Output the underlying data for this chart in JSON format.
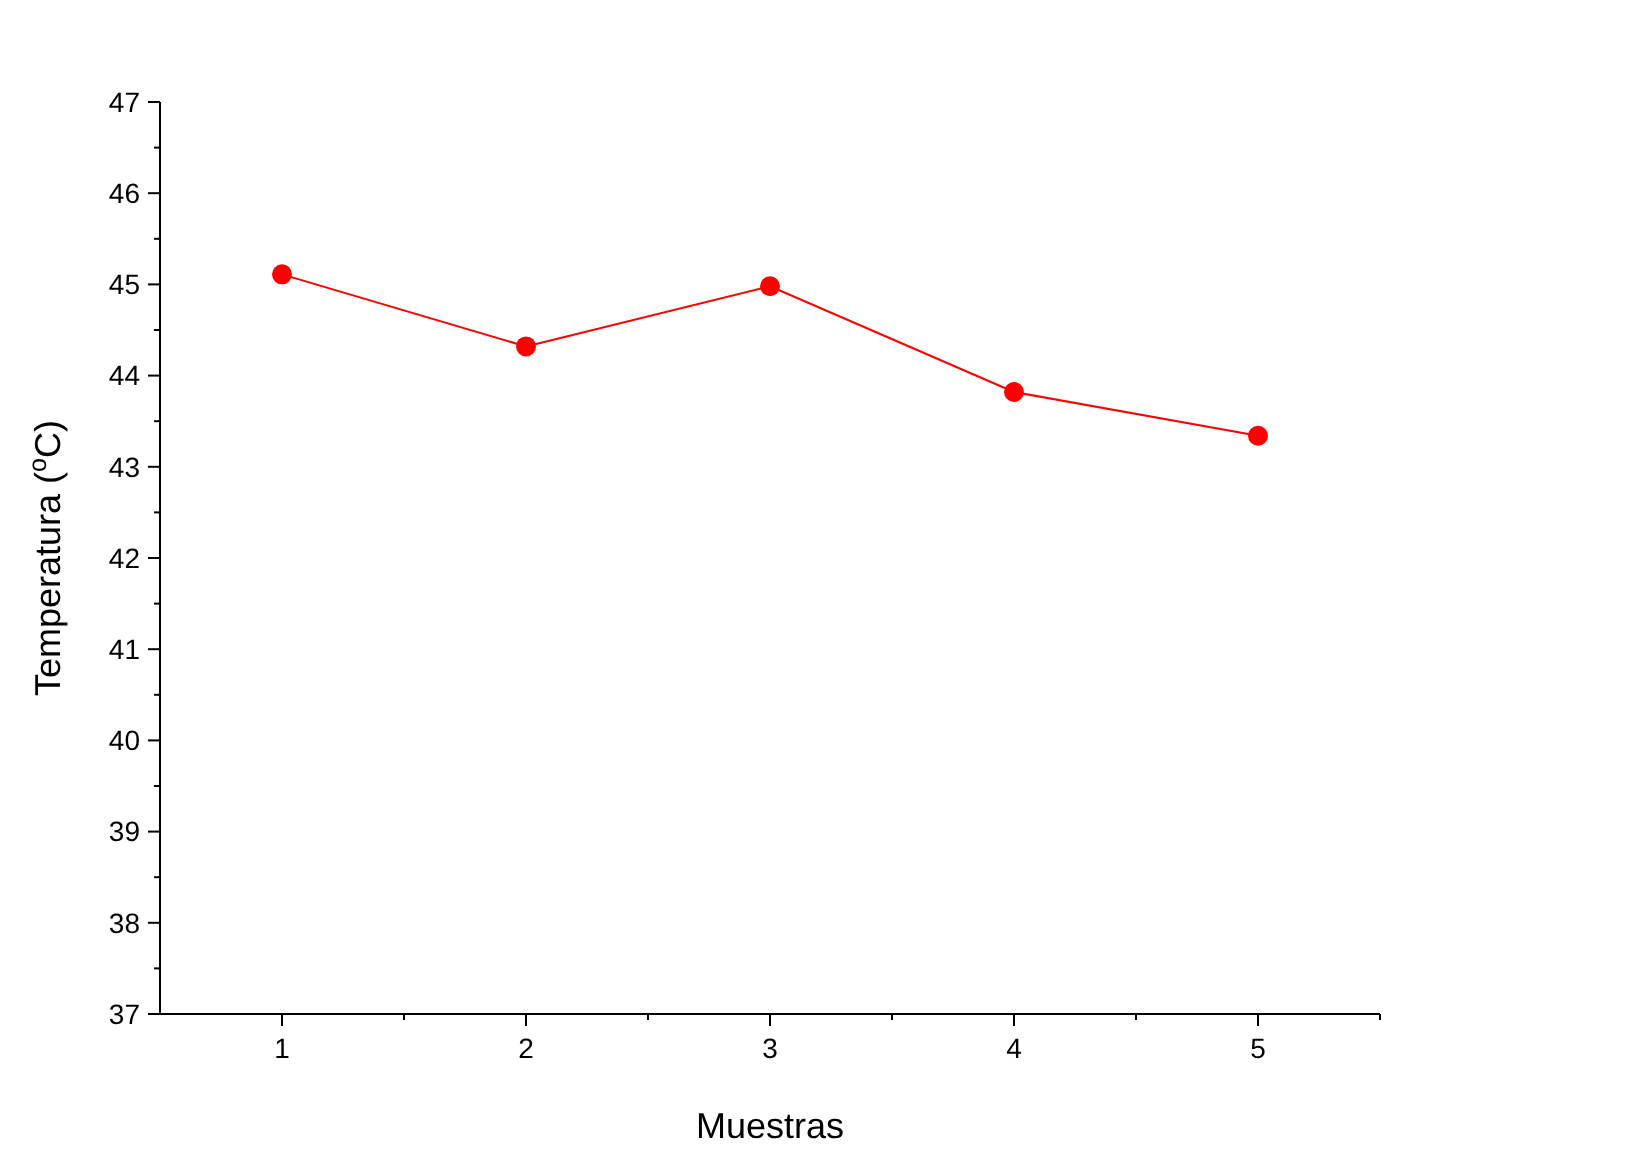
{
  "chart_data": {
    "type": "line",
    "xlabel": "Muestras",
    "ylabel": "Temperatura ($^{o}$C)",
    "x": [
      1,
      2,
      3,
      4,
      5
    ],
    "series": [
      {
        "color": "#ff0000",
        "values": [
          45.11,
          44.32,
          44.98,
          43.82,
          43.34
        ]
      }
    ],
    "xlim": [
      0.5,
      5.5
    ],
    "xticks": [
      1,
      {
        "value": 1.5,
        "label": null
      },
      2,
      {
        "value": 2.5,
        "label": null
      },
      3,
      {
        "value": 3.5,
        "label": null
      },
      4,
      {
        "value": 4.5,
        "label": null
      },
      5,
      {
        "value": 5.5,
        "label": null
      }
    ],
    "ylim": [
      37,
      47
    ],
    "yticks": [
      37,
      {
        "value": 37.5,
        "label": null
      },
      38,
      {
        "value": 38.5,
        "label": null
      },
      39,
      {
        "value": 39.5,
        "label": null
      },
      40,
      {
        "value": 40.5,
        "label": null
      },
      41,
      {
        "value": 41.5,
        "label": null
      },
      42,
      {
        "value": 42.5,
        "label": null
      },
      43,
      {
        "value": 43.5,
        "label": null
      },
      44,
      {
        "value": 44.5,
        "label": null
      },
      45,
      {
        "value": 45.5,
        "label": null
      },
      46,
      {
        "value": 46.5,
        "label": null
      },
      47
    ],
    "marker": "circle",
    "line_style": "solid",
    "grid": false
  }
}
